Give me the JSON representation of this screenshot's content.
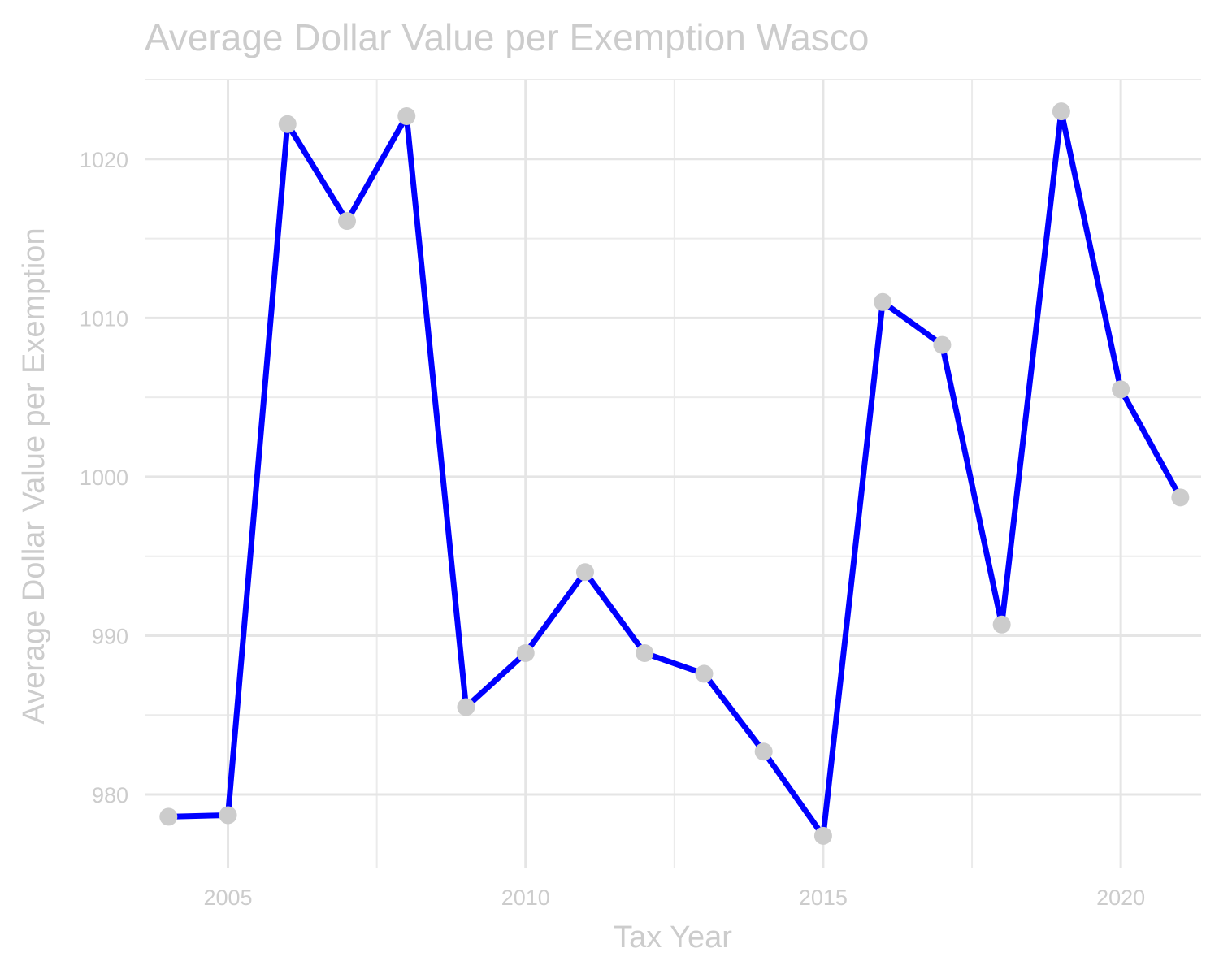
{
  "chart_data": {
    "type": "line",
    "title": "Average Dollar Value per Exemption Wasco",
    "xlabel": "Tax Year",
    "ylabel": "Average Dollar Value per Exemption",
    "x": [
      2004,
      2005,
      2006,
      2007,
      2008,
      2009,
      2010,
      2011,
      2012,
      2013,
      2014,
      2015,
      2016,
      2017,
      2018,
      2019,
      2020,
      2021
    ],
    "series": [
      {
        "values": [
          978.6,
          978.7,
          1022.2,
          1016.1,
          1022.7,
          985.5,
          988.9,
          994.0,
          988.9,
          987.6,
          982.7,
          977.4,
          1011.0,
          1008.3,
          990.7,
          1023.0,
          1005.5,
          998.7
        ]
      }
    ],
    "xlim": [
      2003.6,
      2021.35
    ],
    "ylim": [
      975.4,
      1025.0
    ],
    "x_ticks": [
      "2005",
      "2010",
      "2015",
      "2020"
    ],
    "y_ticks": [
      "980",
      "990",
      "1000",
      "1010",
      "1020"
    ],
    "grid": true,
    "colors": {
      "line": "#0000ff",
      "point": "#cccccc",
      "text": "#cccccc",
      "grid": "#e5e5e5"
    }
  }
}
